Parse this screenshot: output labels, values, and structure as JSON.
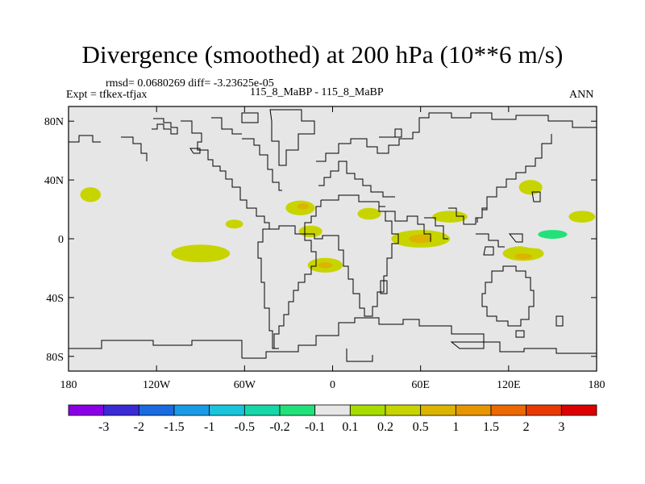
{
  "header": {
    "title": "Divergence (smoothed) at 200 hPa (10**6 m/s)",
    "stats": "rmsd= 0.0680269 diff= -3.23625e-05",
    "expt": "Expt = tfkex-tfjax",
    "comparison": "115_8_MaBP - 115_8_MaBP",
    "season": "ANN"
  },
  "chart_data": {
    "type": "heatmap",
    "title": "Divergence (smoothed) at 200 hPa (10**6 m/s)",
    "xlim": [
      -180,
      180
    ],
    "ylim": [
      -90,
      90
    ],
    "grid": false,
    "x_ticks": [
      {
        "value": -180,
        "label": "180"
      },
      {
        "value": -120,
        "label": "120W"
      },
      {
        "value": -60,
        "label": "60W"
      },
      {
        "value": 0,
        "label": "0"
      },
      {
        "value": 60,
        "label": "60E"
      },
      {
        "value": 120,
        "label": "120E"
      },
      {
        "value": 180,
        "label": "180"
      }
    ],
    "y_ticks": [
      {
        "value": 80,
        "label": "80N"
      },
      {
        "value": 40,
        "label": "40N"
      },
      {
        "value": 0,
        "label": "0"
      },
      {
        "value": -40,
        "label": "40S"
      },
      {
        "value": -80,
        "label": "80S"
      }
    ],
    "colorbar": {
      "colors": [
        "#8a00e6",
        "#3a2bd6",
        "#1a6ae0",
        "#1a9be6",
        "#1ac4dc",
        "#17d6a8",
        "#22e07a",
        "#e6e6e6",
        "#a8dc00",
        "#c8d400",
        "#dcb400",
        "#e69600",
        "#ec6800",
        "#e83a00",
        "#dc0000"
      ],
      "labels": [
        "-3",
        "-2",
        "-1.5",
        "-1",
        "-0.5",
        "-0.2",
        "-0.1",
        "0.1",
        "0.2",
        "0.5",
        "1",
        "1.5",
        "2",
        "3"
      ]
    },
    "patches": [
      {
        "lon": -165,
        "lat": 30,
        "rx": 7,
        "ry": 5,
        "value": 0.2
      },
      {
        "lon": -146,
        "lat": 15,
        "rx": 18,
        "ry": 3,
        "value": -0.1
      },
      {
        "lon": -165,
        "lat": 5,
        "rx": 4,
        "ry": 2,
        "value": -0.1
      },
      {
        "lon": -158,
        "lat": -5,
        "rx": 4,
        "ry": 2,
        "value": -0.1
      },
      {
        "lon": -90,
        "lat": -10,
        "rx": 20,
        "ry": 6,
        "value": 0.2
      },
      {
        "lon": -95,
        "lat": -28,
        "rx": 18,
        "ry": 5,
        "value": -0.1
      },
      {
        "lon": -65,
        "lat": 17,
        "rx": 8,
        "ry": 4,
        "value": -0.1
      },
      {
        "lon": -67,
        "lat": 10,
        "rx": 6,
        "ry": 3,
        "value": 0.2
      },
      {
        "lon": -48,
        "lat": 25,
        "rx": 5,
        "ry": 3,
        "value": -0.1
      },
      {
        "lon": -38,
        "lat": 11,
        "rx": 9,
        "ry": 3,
        "value": -0.1
      },
      {
        "lon": -22,
        "lat": 21,
        "rx": 10,
        "ry": 5,
        "value": 0.2
      },
      {
        "lon": -20,
        "lat": 22,
        "rx": 4,
        "ry": 2,
        "value": 0.5
      },
      {
        "lon": -15,
        "lat": 5,
        "rx": 8,
        "ry": 4,
        "value": 0.2
      },
      {
        "lon": -25,
        "lat": -5,
        "rx": 6,
        "ry": 3,
        "value": -0.1
      },
      {
        "lon": -5,
        "lat": -18,
        "rx": 12,
        "ry": 5,
        "value": 0.2
      },
      {
        "lon": -5,
        "lat": -18,
        "rx": 5,
        "ry": 2,
        "value": 0.5
      },
      {
        "lon": 10,
        "lat": 3,
        "rx": 12,
        "ry": 6,
        "value": -0.1
      },
      {
        "lon": 25,
        "lat": 17,
        "rx": 8,
        "ry": 4,
        "value": 0.2
      },
      {
        "lon": 35,
        "lat": -35,
        "rx": 5,
        "ry": 4,
        "value": -0.1
      },
      {
        "lon": 25,
        "lat": -33,
        "rx": 4,
        "ry": 2,
        "value": -0.1
      },
      {
        "lon": 60,
        "lat": 0,
        "rx": 20,
        "ry": 6,
        "value": 0.2
      },
      {
        "lon": 60,
        "lat": 0,
        "rx": 8,
        "ry": 3,
        "value": 0.5
      },
      {
        "lon": 80,
        "lat": 15,
        "rx": 12,
        "ry": 4,
        "value": 0.2
      },
      {
        "lon": 78,
        "lat": -15,
        "rx": 12,
        "ry": 5,
        "value": -0.1
      },
      {
        "lon": 130,
        "lat": -10,
        "rx": 14,
        "ry": 5,
        "value": 0.2
      },
      {
        "lon": 130,
        "lat": -12,
        "rx": 6,
        "ry": 2,
        "value": 0.5
      },
      {
        "lon": 148,
        "lat": 0,
        "rx": 28,
        "ry": 7,
        "value": -0.1
      },
      {
        "lon": 150,
        "lat": 3,
        "rx": 10,
        "ry": 3,
        "value": -0.2
      },
      {
        "lon": 135,
        "lat": 35,
        "rx": 8,
        "ry": 5,
        "value": 0.2
      },
      {
        "lon": 170,
        "lat": 15,
        "rx": 9,
        "ry": 4,
        "value": 0.2
      },
      {
        "lon": 138,
        "lat": 18,
        "rx": 6,
        "ry": 3,
        "value": -0.1
      }
    ]
  }
}
